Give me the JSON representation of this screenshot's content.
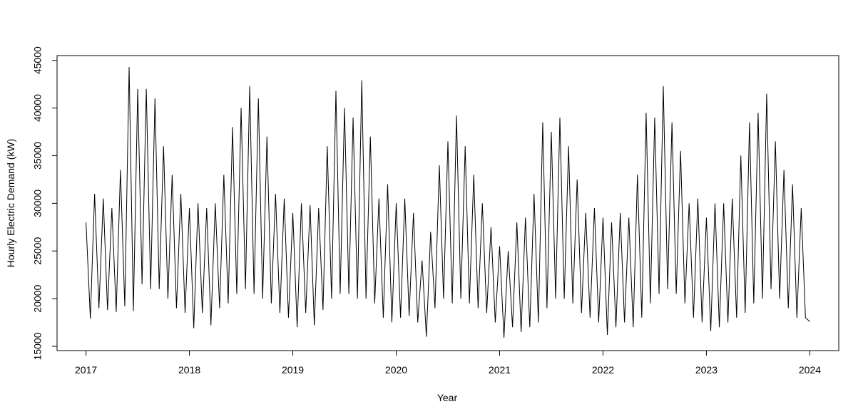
{
  "chart_data": {
    "type": "line",
    "x_label": "Year",
    "y_label": "Hourly Electric Demand (kW)",
    "xlim": [
      2016.72,
      2024.28
    ],
    "ylim": [
      14550,
      45500
    ],
    "xticks": [
      2017,
      2018,
      2019,
      2020,
      2021,
      2022,
      2023,
      2024
    ],
    "yticks": [
      15000,
      20000,
      25000,
      30000,
      35000,
      40000,
      45000
    ],
    "color": "#000000",
    "x": [
      2017,
      2017.042,
      2017.083,
      2017.125,
      2017.167,
      2017.208,
      2017.25,
      2017.292,
      2017.333,
      2017.375,
      2017.417,
      2017.458,
      2017.5,
      2017.542,
      2017.583,
      2017.625,
      2017.667,
      2017.708,
      2017.75,
      2017.792,
      2017.833,
      2017.875,
      2017.917,
      2017.958,
      2018,
      2018.042,
      2018.083,
      2018.125,
      2018.167,
      2018.208,
      2018.25,
      2018.292,
      2018.333,
      2018.375,
      2018.417,
      2018.458,
      2018.5,
      2018.542,
      2018.583,
      2018.625,
      2018.667,
      2018.708,
      2018.75,
      2018.792,
      2018.833,
      2018.875,
      2018.917,
      2018.958,
      2019,
      2019.042,
      2019.083,
      2019.125,
      2019.167,
      2019.208,
      2019.25,
      2019.292,
      2019.333,
      2019.375,
      2019.417,
      2019.458,
      2019.5,
      2019.542,
      2019.583,
      2019.625,
      2019.667,
      2019.708,
      2019.75,
      2019.792,
      2019.833,
      2019.875,
      2019.917,
      2019.958,
      2020,
      2020.042,
      2020.083,
      2020.125,
      2020.167,
      2020.208,
      2020.25,
      2020.292,
      2020.333,
      2020.375,
      2020.417,
      2020.458,
      2020.5,
      2020.542,
      2020.583,
      2020.625,
      2020.667,
      2020.708,
      2020.75,
      2020.792,
      2020.833,
      2020.875,
      2020.917,
      2020.958,
      2021,
      2021.042,
      2021.083,
      2021.125,
      2021.167,
      2021.208,
      2021.25,
      2021.292,
      2021.333,
      2021.375,
      2021.417,
      2021.458,
      2021.5,
      2021.542,
      2021.583,
      2021.625,
      2021.667,
      2021.708,
      2021.75,
      2021.792,
      2021.833,
      2021.875,
      2021.917,
      2021.958,
      2022,
      2022.042,
      2022.083,
      2022.125,
      2022.167,
      2022.208,
      2022.25,
      2022.292,
      2022.333,
      2022.375,
      2022.417,
      2022.458,
      2022.5,
      2022.542,
      2022.583,
      2022.625,
      2022.667,
      2022.708,
      2022.75,
      2022.792,
      2022.833,
      2022.875,
      2022.917,
      2022.958,
      2023,
      2023.042,
      2023.083,
      2023.125,
      2023.167,
      2023.208,
      2023.25,
      2023.292,
      2023.333,
      2023.375,
      2023.417,
      2023.458,
      2023.5,
      2023.542,
      2023.583,
      2023.625,
      2023.667,
      2023.708,
      2023.75,
      2023.792,
      2023.833,
      2023.875,
      2023.917,
      2023.958,
      2024
    ],
    "values": [
      28000,
      17900,
      31000,
      19000,
      30500,
      18800,
      29500,
      18600,
      33500,
      19200,
      44300,
      18700,
      42000,
      21500,
      42000,
      21000,
      41000,
      21000,
      36000,
      20000,
      33000,
      19000,
      31000,
      18500,
      29500,
      16900,
      30000,
      18500,
      29500,
      17200,
      30000,
      19000,
      33000,
      19500,
      38000,
      20500,
      40000,
      21000,
      42300,
      20500,
      41000,
      20000,
      37000,
      19500,
      31000,
      18500,
      30500,
      18000,
      29000,
      17000,
      30000,
      18500,
      29800,
      17200,
      29500,
      18800,
      36000,
      20000,
      41800,
      20500,
      40000,
      20500,
      39000,
      20000,
      42900,
      20000,
      37000,
      19500,
      30500,
      18000,
      32000,
      17500,
      30000,
      18000,
      30500,
      18200,
      29000,
      17500,
      24000,
      16000,
      27000,
      19000,
      34000,
      20000,
      36500,
      19500,
      39200,
      20000,
      36000,
      19500,
      33000,
      19000,
      30000,
      18500,
      27500,
      17500,
      25500,
      15900,
      25000,
      17000,
      28000,
      16500,
      28500,
      17000,
      31000,
      17500,
      38500,
      19000,
      37500,
      20000,
      39000,
      20000,
      36000,
      19500,
      32500,
      18500,
      29000,
      18000,
      29500,
      17500,
      28500,
      16200,
      28000,
      17000,
      29000,
      17500,
      28500,
      17000,
      33000,
      18000,
      39500,
      19500,
      39000,
      20500,
      42300,
      21000,
      38500,
      20500,
      35500,
      19500,
      30000,
      18000,
      30500,
      17500,
      28500,
      16600,
      30000,
      17000,
      30000,
      17500,
      30500,
      18000,
      35000,
      18500,
      38500,
      19500,
      39500,
      20000,
      41500,
      21000,
      36500,
      20000,
      33500,
      19000,
      32000,
      18000,
      29500,
      18000,
      17600
    ]
  }
}
